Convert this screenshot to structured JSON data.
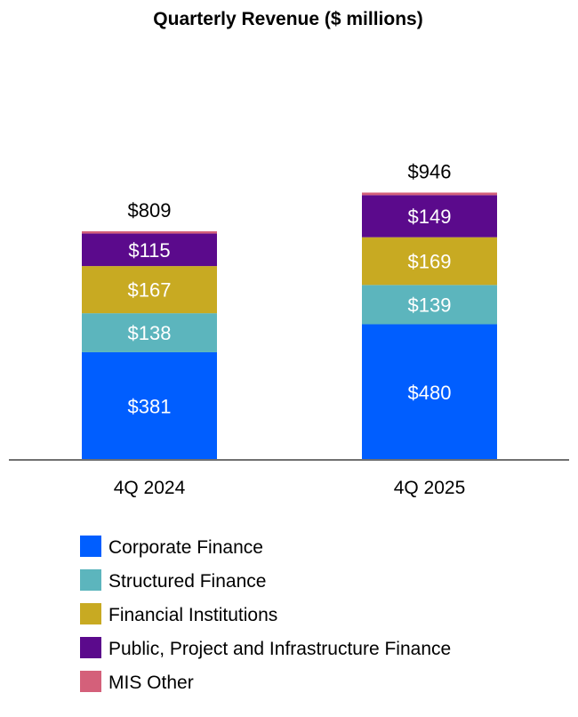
{
  "chart_data": {
    "type": "bar",
    "stacked": true,
    "title": "Quarterly Revenue ($ millions)",
    "categories": [
      "4Q 2024",
      "4Q 2025"
    ],
    "series": [
      {
        "name": "Corporate Finance",
        "values": [
          381,
          480
        ],
        "labels": [
          "$381",
          "$480"
        ],
        "color": "#005EFF"
      },
      {
        "name": "Structured Finance",
        "values": [
          138,
          139
        ],
        "labels": [
          "$138",
          "$139"
        ],
        "color": "#5CB5BD"
      },
      {
        "name": "Financial Institutions",
        "values": [
          167,
          169
        ],
        "labels": [
          "$167",
          "$169"
        ],
        "color": "#C8AA22"
      },
      {
        "name": "Public, Project and Infrastructure Finance",
        "values": [
          115,
          149
        ],
        "labels": [
          "$115",
          "$149"
        ],
        "color": "#5B0A8C"
      },
      {
        "name": "MIS Other",
        "values": [
          8,
          9
        ],
        "labels": [
          "",
          ""
        ],
        "color": "#D4607A"
      }
    ],
    "totals": [
      809,
      946
    ],
    "total_labels": [
      "$809",
      "$946"
    ],
    "legend_position": "bottom",
    "grid": false,
    "ylim": [
      0,
      946
    ]
  }
}
